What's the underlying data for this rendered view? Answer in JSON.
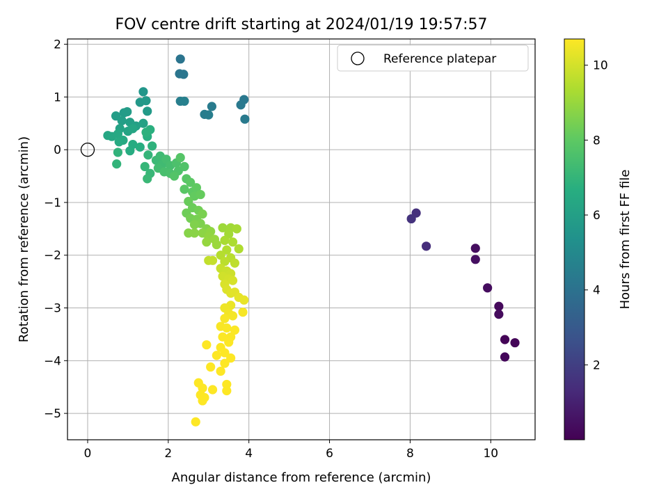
{
  "chart_data": {
    "type": "scatter",
    "title": "FOV centre drift starting at 2024/01/19 19:57:57",
    "xlabel": "Angular distance from reference (arcmin)",
    "ylabel": "Rotation from reference (arcmin)",
    "xlim": [
      -0.5,
      11.1
    ],
    "ylim": [
      -5.5,
      2.1
    ],
    "xticks": [
      0,
      2,
      4,
      6,
      8,
      10
    ],
    "yticks": [
      -5,
      -4,
      -3,
      -2,
      -1,
      0,
      1,
      2
    ],
    "xtick_labels": [
      "0",
      "2",
      "4",
      "6",
      "8",
      "10"
    ],
    "ytick_labels": [
      "−5",
      "−4",
      "−3",
      "−2",
      "−1",
      "0",
      "1",
      "2"
    ],
    "grid": true,
    "colormap": "viridis",
    "colorbar": {
      "label": "Hours from first FF file",
      "range": [
        0,
        10.7
      ],
      "ticks": [
        2,
        4,
        6,
        8,
        10
      ],
      "tick_labels": [
        "2",
        "4",
        "6",
        "8",
        "10"
      ]
    },
    "legend": {
      "position": "top-right",
      "entries": [
        "Reference platepar"
      ]
    },
    "reference_point": [
      0,
      0
    ],
    "points": [
      [
        10.35,
        -3.6,
        0.1
      ],
      [
        10.6,
        -3.66,
        0.15
      ],
      [
        10.35,
        -3.93,
        0.2
      ],
      [
        10.2,
        -2.97,
        0.25
      ],
      [
        10.2,
        -3.12,
        0.3
      ],
      [
        9.92,
        -2.62,
        0.35
      ],
      [
        9.62,
        -1.87,
        0.4
      ],
      [
        9.62,
        -2.08,
        0.45
      ],
      [
        8.4,
        -1.83,
        1.4
      ],
      [
        8.15,
        -1.2,
        1.5
      ],
      [
        8.03,
        -1.31,
        1.6
      ],
      [
        2.3,
        1.72,
        4.1
      ],
      [
        2.28,
        1.44,
        4.15
      ],
      [
        2.38,
        1.43,
        4.2
      ],
      [
        3.88,
        0.95,
        4.25
      ],
      [
        3.8,
        0.85,
        4.3
      ],
      [
        3.9,
        0.58,
        4.35
      ],
      [
        3.08,
        0.82,
        4.4
      ],
      [
        2.9,
        0.67,
        4.45
      ],
      [
        3.0,
        0.66,
        4.5
      ],
      [
        2.3,
        0.92,
        4.55
      ],
      [
        2.4,
        0.92,
        4.6
      ],
      [
        1.38,
        1.1,
        5.6
      ],
      [
        1.3,
        0.9,
        5.65
      ],
      [
        1.45,
        0.93,
        5.7
      ],
      [
        1.48,
        0.73,
        5.75
      ],
      [
        0.9,
        0.7,
        5.8
      ],
      [
        0.98,
        0.72,
        5.85
      ],
      [
        0.7,
        0.64,
        5.9
      ],
      [
        0.85,
        0.55,
        5.95
      ],
      [
        1.05,
        0.52,
        6.0
      ],
      [
        1.2,
        0.45,
        6.05
      ],
      [
        1.38,
        0.5,
        6.1
      ],
      [
        0.8,
        0.4,
        6.15
      ],
      [
        1.0,
        0.35,
        6.2
      ],
      [
        1.12,
        0.4,
        6.25
      ],
      [
        0.5,
        0.27,
        6.3
      ],
      [
        0.6,
        0.25,
        6.35
      ],
      [
        0.75,
        0.3,
        6.4
      ],
      [
        0.88,
        0.18,
        6.45
      ],
      [
        0.78,
        0.15,
        6.5
      ],
      [
        1.12,
        0.1,
        6.55
      ],
      [
        1.05,
        -0.02,
        6.6
      ],
      [
        1.3,
        0.05,
        6.65
      ],
      [
        1.48,
        0.25,
        6.7
      ],
      [
        1.55,
        0.38,
        6.75
      ],
      [
        1.45,
        0.33,
        6.8
      ],
      [
        1.6,
        0.07,
        6.85
      ],
      [
        0.75,
        -0.05,
        6.9
      ],
      [
        0.72,
        -0.27,
        6.95
      ],
      [
        1.5,
        -0.1,
        7.0
      ],
      [
        1.42,
        -0.32,
        7.05
      ],
      [
        1.55,
        -0.45,
        7.1
      ],
      [
        1.48,
        -0.55,
        7.15
      ],
      [
        1.7,
        -0.2,
        7.2
      ],
      [
        1.8,
        -0.12,
        7.25
      ],
      [
        1.85,
        -0.28,
        7.3
      ],
      [
        1.75,
        -0.35,
        7.35
      ],
      [
        1.95,
        -0.18,
        7.4
      ],
      [
        2.05,
        -0.3,
        7.45
      ],
      [
        1.9,
        -0.42,
        7.5
      ],
      [
        2.05,
        -0.45,
        7.55
      ],
      [
        2.2,
        -0.25,
        7.6
      ],
      [
        2.25,
        -0.4,
        7.65
      ],
      [
        2.4,
        -0.32,
        7.7
      ],
      [
        2.15,
        -0.5,
        7.75
      ],
      [
        2.3,
        -0.15,
        7.8
      ],
      [
        2.45,
        -0.55,
        7.85
      ],
      [
        2.4,
        -0.75,
        7.9
      ],
      [
        2.55,
        -0.62,
        7.95
      ],
      [
        2.6,
        -0.8,
        8.0
      ],
      [
        2.7,
        -0.72,
        8.05
      ],
      [
        2.65,
        -0.88,
        8.1
      ],
      [
        2.8,
        -0.85,
        8.15
      ],
      [
        2.5,
        -0.98,
        8.2
      ],
      [
        2.6,
        -1.1,
        8.25
      ],
      [
        2.45,
        -1.2,
        8.3
      ],
      [
        2.75,
        -1.15,
        8.35
      ],
      [
        2.55,
        -1.3,
        8.4
      ],
      [
        2.7,
        -1.32,
        8.45
      ],
      [
        2.85,
        -1.22,
        8.5
      ],
      [
        2.8,
        -1.4,
        8.55
      ],
      [
        2.65,
        -1.42,
        8.6
      ],
      [
        2.95,
        -1.5,
        8.65
      ],
      [
        2.5,
        -1.58,
        8.7
      ],
      [
        2.65,
        -1.58,
        8.75
      ],
      [
        2.85,
        -1.58,
        8.8
      ],
      [
        3.05,
        -1.55,
        8.85
      ],
      [
        3.0,
        -1.65,
        8.9
      ],
      [
        2.95,
        -1.75,
        8.95
      ],
      [
        3.15,
        -1.7,
        9.0
      ],
      [
        3.2,
        -1.8,
        9.05
      ],
      [
        3.35,
        -1.48,
        9.1
      ],
      [
        3.55,
        -1.48,
        9.15
      ],
      [
        3.5,
        -1.6,
        9.2
      ],
      [
        3.7,
        -1.5,
        9.25
      ],
      [
        3.4,
        -1.72,
        9.3
      ],
      [
        3.6,
        -1.75,
        9.35
      ],
      [
        3.75,
        -1.88,
        9.4
      ],
      [
        3.45,
        -1.9,
        9.45
      ],
      [
        3.3,
        -2.0,
        9.5
      ],
      [
        3.55,
        -2.05,
        9.55
      ],
      [
        3.4,
        -2.12,
        9.6
      ],
      [
        3.65,
        -2.15,
        9.65
      ],
      [
        3.0,
        -2.1,
        9.7
      ],
      [
        3.1,
        -2.1,
        9.75
      ],
      [
        3.3,
        -2.25,
        9.8
      ],
      [
        3.45,
        -2.3,
        9.85
      ],
      [
        3.55,
        -2.35,
        9.9
      ],
      [
        3.35,
        -2.4,
        9.95
      ],
      [
        3.5,
        -2.45,
        10.0
      ],
      [
        3.6,
        -2.48,
        10.05
      ],
      [
        3.4,
        -2.55,
        10.1
      ],
      [
        3.45,
        -2.65,
        10.15
      ],
      [
        3.55,
        -2.72,
        10.2
      ],
      [
        3.65,
        -2.7,
        10.25
      ],
      [
        3.75,
        -2.8,
        10.3
      ],
      [
        3.88,
        -2.85,
        10.35
      ],
      [
        3.55,
        -2.95,
        10.4
      ],
      [
        3.4,
        -3.0,
        10.45
      ],
      [
        3.5,
        -3.1,
        10.5
      ],
      [
        3.6,
        -3.15,
        10.55
      ],
      [
        3.85,
        -3.08,
        10.58
      ],
      [
        3.4,
        -3.2,
        10.6
      ],
      [
        3.3,
        -3.35,
        10.62
      ],
      [
        3.45,
        -3.38,
        10.64
      ],
      [
        3.55,
        -3.55,
        10.65
      ],
      [
        3.65,
        -3.42,
        10.66
      ],
      [
        3.35,
        -3.55,
        10.67
      ],
      [
        3.5,
        -3.65,
        10.68
      ],
      [
        3.3,
        -3.75,
        10.69
      ],
      [
        3.4,
        -3.85,
        10.7
      ],
      [
        3.55,
        -3.95,
        10.7
      ],
      [
        2.95,
        -3.7,
        10.7
      ],
      [
        3.2,
        -3.9,
        10.7
      ],
      [
        3.4,
        -4.05,
        10.7
      ],
      [
        3.3,
        -4.2,
        10.7
      ],
      [
        3.05,
        -4.12,
        10.7
      ],
      [
        3.45,
        -4.45,
        10.7
      ],
      [
        3.45,
        -4.57,
        10.7
      ],
      [
        3.1,
        -4.55,
        10.7
      ],
      [
        2.75,
        -4.42,
        10.7
      ],
      [
        2.85,
        -4.52,
        10.7
      ],
      [
        2.8,
        -4.65,
        10.7
      ],
      [
        2.9,
        -4.7,
        10.7
      ],
      [
        2.85,
        -4.76,
        10.7
      ],
      [
        2.68,
        -5.16,
        10.7
      ]
    ]
  }
}
